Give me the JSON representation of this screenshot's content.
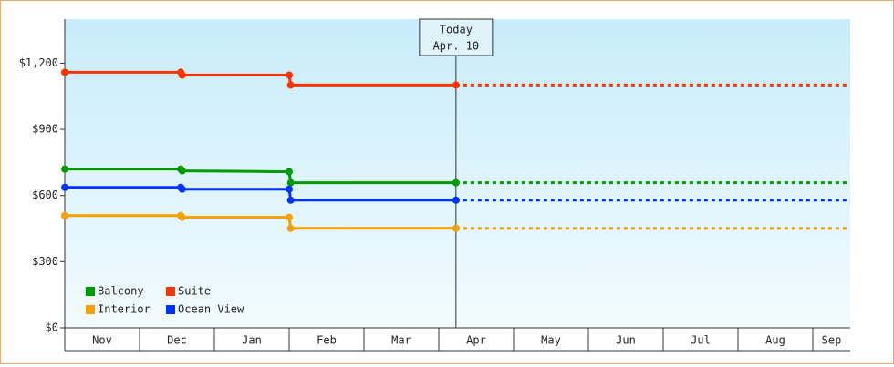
{
  "chart_data": {
    "type": "line",
    "categories": [
      "Nov",
      "Dec",
      "Jan",
      "Feb",
      "Mar",
      "Apr",
      "May",
      "Jun",
      "Jul",
      "Aug",
      "Sep"
    ],
    "xlim": [
      0,
      10.5
    ],
    "ylim": [
      0,
      1400
    ],
    "yticks": [
      {
        "value": 0,
        "label": "$0"
      },
      {
        "value": 300,
        "label": "$300"
      },
      {
        "value": 600,
        "label": "$600"
      },
      {
        "value": 900,
        "label": "$900"
      },
      {
        "value": 1200,
        "label": "$1,200"
      }
    ],
    "annotation": {
      "text": "Today",
      "date": "Apr. 10",
      "x": 5.23
    },
    "projection": "dotted",
    "legend": "lower left",
    "series": [
      {
        "name": "Balcony",
        "color": "#009900",
        "x": [
          0,
          1.55,
          1.57,
          3.0,
          3.02,
          5.23
        ],
        "values": [
          720,
          720,
          712,
          708,
          658,
          658
        ]
      },
      {
        "name": "Suite",
        "color": "#ff3300",
        "x": [
          0,
          1.55,
          1.57,
          3.0,
          3.02,
          5.23
        ],
        "values": [
          1159,
          1159,
          1146,
          1146,
          1101,
          1101
        ]
      },
      {
        "name": "Interior",
        "color": "#f5a000",
        "x": [
          0,
          1.55,
          1.57,
          3.0,
          3.02,
          5.23
        ],
        "values": [
          509,
          509,
          501,
          501,
          451,
          451
        ]
      },
      {
        "name": "Ocean View",
        "color": "#0033ff",
        "x": [
          0,
          1.55,
          1.57,
          3.0,
          3.02,
          5.23
        ],
        "values": [
          637,
          637,
          629,
          629,
          579,
          579
        ]
      }
    ]
  }
}
